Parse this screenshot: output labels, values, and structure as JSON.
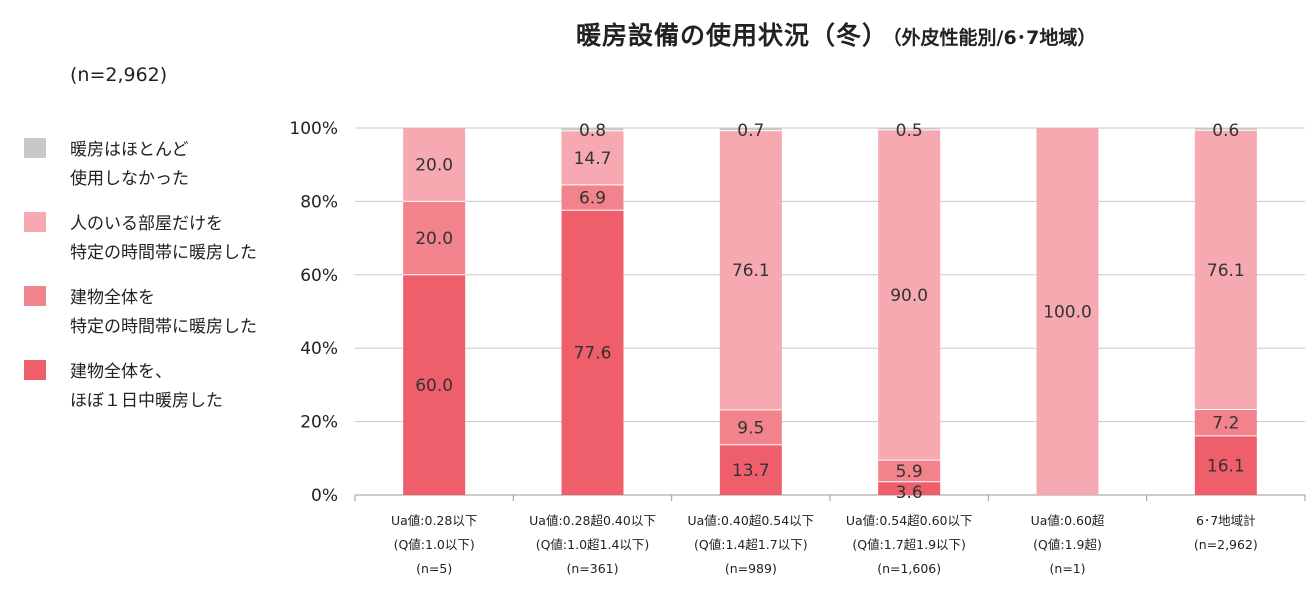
{
  "title": {
    "main": "暖房設備の使用状況（冬）",
    "sub": "（外皮性能別/6･7地域）"
  },
  "sample_size": "(n=2,962)",
  "chart_data": {
    "type": "bar",
    "stacked": true,
    "title": "暖房設備の使用状況（冬）（外皮性能別/6･7地域）",
    "ylim": [
      0,
      100
    ],
    "yticks": [
      "0%",
      "20%",
      "40%",
      "60%",
      "80%",
      "100%"
    ],
    "categories": [
      [
        "Ua値:0.28以下",
        "(Q値:1.0以下)",
        "(n=5)"
      ],
      [
        "Ua値:0.28超0.40以下",
        "(Q値:1.0超1.4以下)",
        "(n=361)"
      ],
      [
        "Ua値:0.40超0.54以下",
        "(Q値:1.4超1.7以下)",
        "(n=989)"
      ],
      [
        "Ua値:0.54超0.60以下",
        "(Q値:1.7超1.9以下)",
        "(n=1,606)"
      ],
      [
        "Ua値:0.60超",
        "(Q値:1.9超)",
        "(n=1)"
      ],
      [
        "6･7地域計",
        "(n=2,962)"
      ]
    ],
    "series": [
      {
        "name": "建物全体を、ほぼ１日中暖房した",
        "legend_lines": [
          "建物全体を、",
          "ほぼ１日中暖房した"
        ],
        "color": "#ef5f6b",
        "values": [
          60.0,
          77.6,
          13.7,
          3.6,
          0,
          16.1
        ],
        "labels": [
          "60.0",
          "77.6",
          "13.7",
          "3.6",
          "",
          "16.1"
        ]
      },
      {
        "name": "建物全体を特定の時間帯に暖房した",
        "legend_lines": [
          "建物全体を",
          "特定の時間帯に暖房した"
        ],
        "color": "#f2838c",
        "values": [
          20.0,
          6.9,
          9.5,
          5.9,
          0,
          7.2
        ],
        "labels": [
          "20.0",
          "6.9",
          "9.5",
          "5.9",
          "",
          "7.2"
        ]
      },
      {
        "name": "人のいる部屋だけを特定の時間帯に暖房した",
        "legend_lines": [
          "人のいる部屋だけを",
          "特定の時間帯に暖房した"
        ],
        "color": "#f7a9b1",
        "values": [
          20.0,
          14.7,
          76.1,
          90.0,
          100.0,
          76.1
        ],
        "labels": [
          "20.0",
          "14.7",
          "76.1",
          "90.0",
          "100.0",
          "76.1"
        ]
      },
      {
        "name": "暖房はほとんど使用しなかった",
        "legend_lines": [
          "暖房はほとんど",
          "使用しなかった"
        ],
        "color": "#c8c8c8",
        "values": [
          0,
          0.8,
          0.7,
          0.5,
          0,
          0.6
        ],
        "labels": [
          "",
          "0.8",
          "0.7",
          "0.5",
          "",
          "0.6"
        ]
      }
    ]
  }
}
